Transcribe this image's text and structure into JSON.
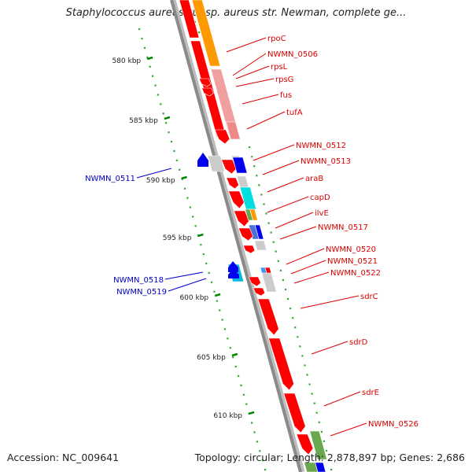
{
  "title": "Staphylococcus aureus subsp. aureus str. Newman, complete ge...",
  "footer": {
    "accession": "Accession: NC_009641",
    "summary": "Topology: circular; Length: 2,878,897 bp; Genes: 2,686"
  },
  "colors": {
    "backbone": "#8a8a8a",
    "forward_label": "#dd0000",
    "reverse_label": "#0000cc",
    "tick": "#008800",
    "ruler_dot": "#33aa33"
  },
  "ticks": [
    {
      "label": "580 kbp",
      "kbp": 580
    },
    {
      "label": "585 kbp",
      "kbp": 585
    },
    {
      "label": "590 kbp",
      "kbp": 590
    },
    {
      "label": "595 kbp",
      "kbp": 595
    },
    {
      "label": "600 kbp",
      "kbp": 600
    },
    {
      "label": "605 kbp",
      "kbp": 605
    },
    {
      "label": "610 kbp",
      "kbp": 610
    }
  ],
  "genes_forward": [
    {
      "name": "rpoC",
      "color": "#ff9900"
    },
    {
      "name": "NWMN_0506",
      "color": "#ff0000"
    },
    {
      "name": "rpsL",
      "color": "#ff0000"
    },
    {
      "name": "rpsG",
      "color": "#ff0000"
    },
    {
      "name": "fus",
      "color": "#ff0000"
    },
    {
      "name": "tufA",
      "color": "#ff0000"
    },
    {
      "name": "NWMN_0512",
      "color": "#ff0000"
    },
    {
      "name": "NWMN_0513",
      "color": "#ff0000"
    },
    {
      "name": "araB",
      "color": "#ff0000"
    },
    {
      "name": "capD",
      "color": "#ff0000"
    },
    {
      "name": "ilvE",
      "color": "#ff0000"
    },
    {
      "name": "NWMN_0517",
      "color": "#ff0000"
    },
    {
      "name": "NWMN_0520",
      "color": "#ff0000"
    },
    {
      "name": "NWMN_0521",
      "color": "#ff0000"
    },
    {
      "name": "NWMN_0522",
      "color": "#ff0000"
    },
    {
      "name": "sdrC",
      "color": "#ff0000"
    },
    {
      "name": "sdrD",
      "color": "#ff0000"
    },
    {
      "name": "sdrE",
      "color": "#ff0000"
    },
    {
      "name": "NWMN_0526",
      "color": "#ff0000"
    }
  ],
  "genes_reverse": [
    {
      "name": "NWMN_0511",
      "color": "#0000ff"
    },
    {
      "name": "NWMN_0518",
      "color": "#0000ff"
    },
    {
      "name": "NWMN_0519",
      "color": "#0000ff"
    }
  ]
}
